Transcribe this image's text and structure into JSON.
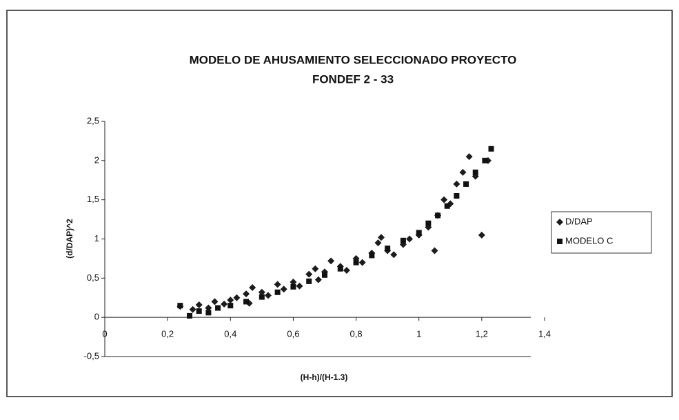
{
  "chart_data": {
    "type": "scatter",
    "title": [
      "MODELO DE AHUSAMIENTO SELECCIONADO PROYECTO",
      "FONDEF 2 - 33"
    ],
    "x_label": "(H-h)/(H-1.3)",
    "y_label": "(d/DAP)^2",
    "xlim": [
      0,
      1.4
    ],
    "xticks": [
      0,
      {
        "value": 0.2,
        "label": "0,2"
      },
      {
        "value": 0.4,
        "label": "0,4"
      },
      {
        "value": 0.6,
        "label": "0,6"
      },
      {
        "value": 0.8,
        "label": "0,8"
      },
      1,
      {
        "value": 1.2,
        "label": "1,2"
      },
      {
        "value": 1.4,
        "label": "1,4"
      }
    ],
    "ylim": [
      -0.5,
      2.5
    ],
    "yticks": [
      {
        "value": -0.5,
        "label": "-0,5"
      },
      0,
      {
        "value": 0.5,
        "label": "0,5"
      },
      1,
      {
        "value": 1.5,
        "label": "1,5"
      },
      2,
      {
        "value": 2.5,
        "label": "2,5"
      }
    ],
    "legend": "right",
    "series": [
      {
        "name": "D/DAP",
        "color": "#1c1c1c",
        "marker": "diamond",
        "x": [
          0.24,
          0.28,
          0.3,
          0.33,
          0.35,
          0.38,
          0.4,
          0.42,
          0.45,
          0.47,
          0.5,
          0.52,
          0.55,
          0.57,
          0.6,
          0.62,
          0.65,
          0.67,
          0.7,
          0.72,
          0.75,
          0.77,
          0.8,
          0.82,
          0.85,
          0.87,
          0.9,
          0.92,
          0.95,
          0.97,
          1.0,
          1.03,
          1.05,
          1.06,
          1.08,
          1.1,
          1.12,
          1.14,
          1.16,
          1.18,
          1.2,
          1.22,
          0.46,
          0.68,
          0.88
        ],
        "values": [
          0.14,
          0.1,
          0.16,
          0.12,
          0.2,
          0.17,
          0.22,
          0.25,
          0.3,
          0.38,
          0.32,
          0.28,
          0.42,
          0.36,
          0.45,
          0.4,
          0.55,
          0.62,
          0.58,
          0.72,
          0.65,
          0.6,
          0.75,
          0.7,
          0.82,
          0.95,
          0.85,
          0.8,
          0.93,
          1.0,
          1.05,
          1.15,
          0.85,
          1.3,
          1.5,
          1.45,
          1.7,
          1.85,
          2.05,
          1.8,
          1.05,
          2.0,
          0.18,
          0.48,
          1.02
        ]
      },
      {
        "name": "MODELO C",
        "color": "#111111",
        "marker": "square",
        "x": [
          0.24,
          0.27,
          0.3,
          0.33,
          0.36,
          0.4,
          0.45,
          0.5,
          0.55,
          0.6,
          0.65,
          0.7,
          0.75,
          0.8,
          0.85,
          0.9,
          0.95,
          1.0,
          1.03,
          1.06,
          1.09,
          1.12,
          1.15,
          1.18,
          1.21,
          1.23
        ],
        "values": [
          0.15,
          0.02,
          0.08,
          0.06,
          0.12,
          0.15,
          0.2,
          0.26,
          0.32,
          0.39,
          0.46,
          0.54,
          0.62,
          0.7,
          0.79,
          0.88,
          0.98,
          1.08,
          1.2,
          1.3,
          1.42,
          1.55,
          1.7,
          1.85,
          2.0,
          2.15
        ]
      }
    ]
  }
}
